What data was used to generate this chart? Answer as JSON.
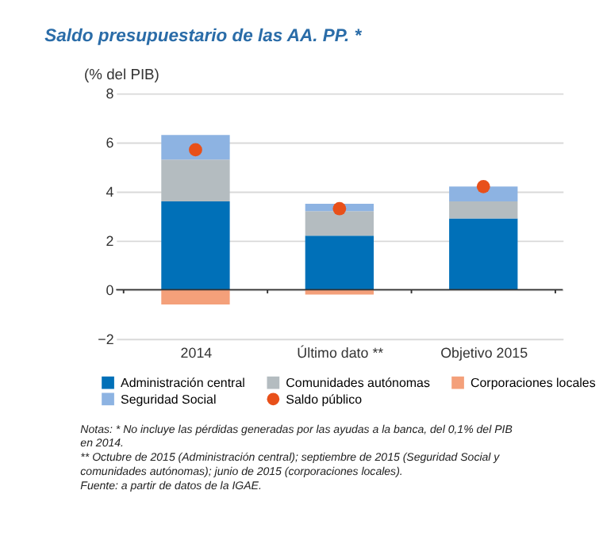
{
  "chart_data": {
    "type": "bar",
    "stacked": true,
    "title": "Saldo presupuestario de las AA. PP. *",
    "ylabel": "(% del PIB)",
    "categories": [
      "2014",
      "Último dato **",
      "Objetivo 2015"
    ],
    "series": [
      {
        "name": "Administración central",
        "color": "#0070b8",
        "values": [
          3.6,
          2.2,
          2.9
        ]
      },
      {
        "name": "Comunidades autónomas",
        "color": "#b4bcc0",
        "values": [
          1.7,
          1.0,
          0.7
        ]
      },
      {
        "name": "Corporaciones locales",
        "color": "#f4a07a",
        "values": [
          -0.6,
          -0.2,
          0
        ]
      },
      {
        "name": "Seguridad Social",
        "color": "#8db3e2",
        "values": [
          1.0,
          0.3,
          0.6
        ]
      },
      {
        "name": "Saldo público",
        "color": "#e8501a",
        "type": "scatter",
        "marker": "circle",
        "values": [
          5.7,
          3.3,
          4.2
        ]
      }
    ],
    "ylim": [
      -2,
      8
    ],
    "yticks": [
      -2,
      0,
      2,
      4,
      6,
      8
    ],
    "grid": "y",
    "legend": "bottom",
    "annotations": [
      "Notas: * No incluye las pérdidas generadas por las ayudas a la banca, del 0,1% del PIB en 2014.",
      "** Octubre de 2015 (Administración central);  septiembre de 2015 (Seguridad Social y comunidades autónomas); junio  de 2015 (corporaciones locales).",
      "Fuente: a partir de datos de la IGAE."
    ]
  }
}
